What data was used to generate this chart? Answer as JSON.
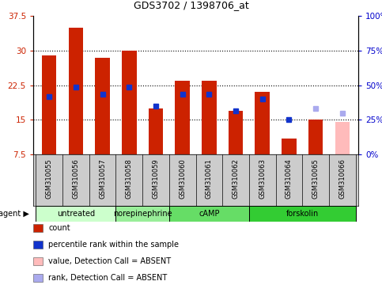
{
  "title": "GDS3702 / 1398706_at",
  "samples": [
    "GSM310055",
    "GSM310056",
    "GSM310057",
    "GSM310058",
    "GSM310059",
    "GSM310060",
    "GSM310061",
    "GSM310062",
    "GSM310063",
    "GSM310064",
    "GSM310065",
    "GSM310066"
  ],
  "count_values": [
    29.0,
    35.0,
    28.5,
    30.0,
    17.5,
    23.5,
    23.5,
    17.0,
    21.0,
    11.0,
    15.0,
    null
  ],
  "rank_values": [
    20.0,
    22.0,
    20.5,
    22.0,
    18.0,
    20.5,
    20.5,
    17.0,
    19.5,
    15.0,
    null,
    null
  ],
  "absent_count": [
    null,
    null,
    null,
    null,
    null,
    null,
    null,
    null,
    null,
    null,
    null,
    14.5
  ],
  "absent_rank": [
    null,
    null,
    null,
    null,
    null,
    null,
    null,
    null,
    null,
    null,
    17.5,
    16.5
  ],
  "ylim": [
    7.5,
    37.5
  ],
  "yticks_left": [
    7.5,
    15.0,
    22.5,
    30.0,
    37.5
  ],
  "yticks_right": [
    0,
    25,
    50,
    75,
    100
  ],
  "agents": [
    {
      "label": "untreated",
      "start": 0,
      "end": 3,
      "color": "#ccffcc"
    },
    {
      "label": "norepinephrine",
      "start": 3,
      "end": 5,
      "color": "#99ee99"
    },
    {
      "label": "cAMP",
      "start": 5,
      "end": 8,
      "color": "#66dd66"
    },
    {
      "label": "forskolin",
      "start": 8,
      "end": 12,
      "color": "#33cc33"
    }
  ],
  "bar_width": 0.55,
  "count_color": "#cc2200",
  "rank_color": "#1133cc",
  "absent_count_color": "#ffbbbb",
  "absent_rank_color": "#aaaaee",
  "bg_color": "#ffffff",
  "yaxis_left_color": "#cc2200",
  "yaxis_right_color": "#0000cc",
  "xlabel_area_color": "#cccccc",
  "legend_items": [
    {
      "label": "count",
      "color": "#cc2200"
    },
    {
      "label": "percentile rank within the sample",
      "color": "#1133cc"
    },
    {
      "label": "value, Detection Call = ABSENT",
      "color": "#ffbbbb"
    },
    {
      "label": "rank, Detection Call = ABSENT",
      "color": "#aaaaee"
    }
  ]
}
